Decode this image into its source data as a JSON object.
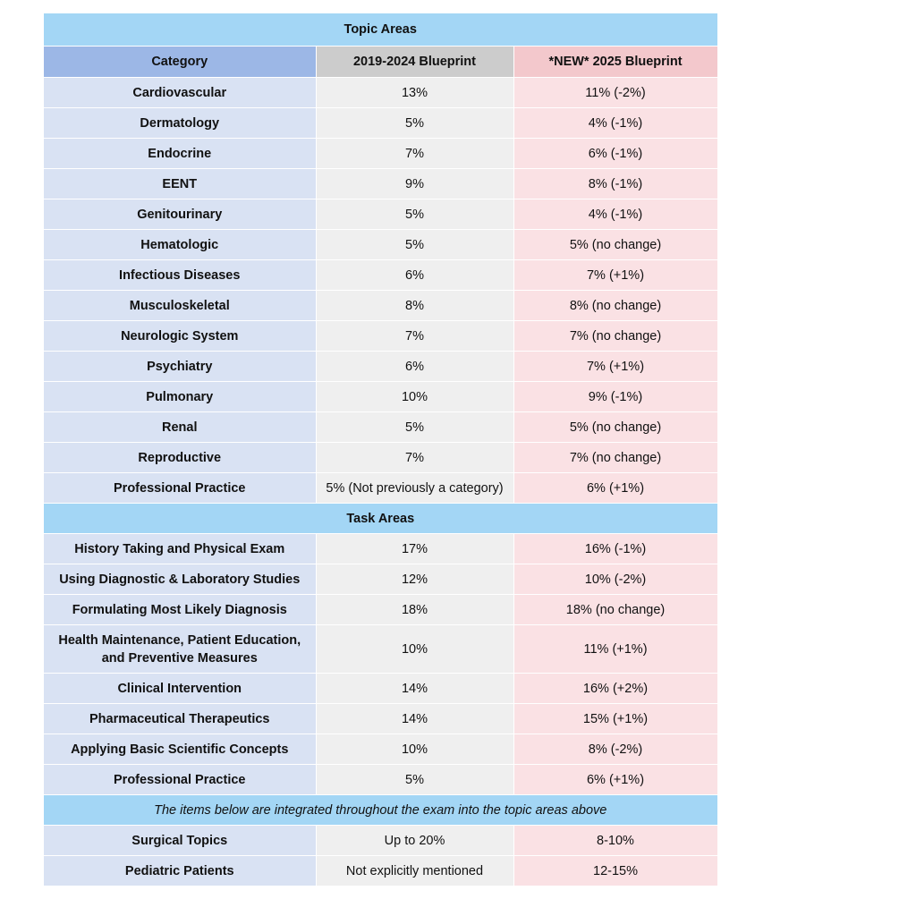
{
  "table": {
    "title": "Topic Areas",
    "headers": [
      "Category",
      "2019-2024 Blueprint",
      "*NEW* 2025 Blueprint"
    ],
    "topic_rows": [
      [
        "Cardiovascular",
        "13%",
        "11% (-2%)"
      ],
      [
        "Dermatology",
        "5%",
        "4% (-1%)"
      ],
      [
        "Endocrine",
        "7%",
        "6% (-1%)"
      ],
      [
        "EENT",
        "9%",
        "8% (-1%)"
      ],
      [
        "Genitourinary",
        "5%",
        "4% (-1%)"
      ],
      [
        "Hematologic",
        "5%",
        "5% (no change)"
      ],
      [
        "Infectious Diseases",
        "6%",
        "7% (+1%)"
      ],
      [
        "Musculoskeletal",
        "8%",
        "8% (no change)"
      ],
      [
        "Neurologic System",
        "7%",
        "7% (no change)"
      ],
      [
        "Psychiatry",
        "6%",
        "7% (+1%)"
      ],
      [
        "Pulmonary",
        "10%",
        "9% (-1%)"
      ],
      [
        "Renal",
        "5%",
        "5% (no change)"
      ],
      [
        "Reproductive",
        "7%",
        "7% (no change)"
      ],
      [
        "Professional Practice",
        "5% (Not previously a category)",
        "6% (+1%)"
      ]
    ],
    "task_section_title": "Task Areas",
    "task_rows": [
      [
        "History Taking and Physical Exam",
        "17%",
        "16% (-1%)"
      ],
      [
        "Using Diagnostic & Laboratory Studies",
        "12%",
        "10% (-2%)"
      ],
      [
        "Formulating Most Likely Diagnosis",
        "18%",
        "18% (no change)"
      ],
      [
        "Health Maintenance, Patient Education, and Preventive Measures",
        "10%",
        "11% (+1%)"
      ],
      [
        "Clinical Intervention",
        "14%",
        "16% (+2%)"
      ],
      [
        "Pharmaceutical Therapeutics",
        "14%",
        "15% (+1%)"
      ],
      [
        "Applying Basic Scientific Concepts",
        "10%",
        "8% (-2%)"
      ],
      [
        "Professional Practice",
        "5%",
        "6% (+1%)"
      ]
    ],
    "integrated_note": "The items below are integrated throughout the exam into the topic areas above",
    "integrated_rows": [
      [
        "Surgical Topics",
        "Up to 20%",
        "8-10%"
      ],
      [
        "Pediatric Patients",
        "Not explicitly mentioned",
        "12-15%"
      ]
    ]
  },
  "colors": {
    "title_blue": "#a3d6f5",
    "header_category": "#9cb7e6",
    "header_old": "#cccccc",
    "header_new": "#f3c8cc",
    "category_cell": "#d9e2f3",
    "old_cell": "#efefef",
    "new_cell": "#fae1e4"
  }
}
